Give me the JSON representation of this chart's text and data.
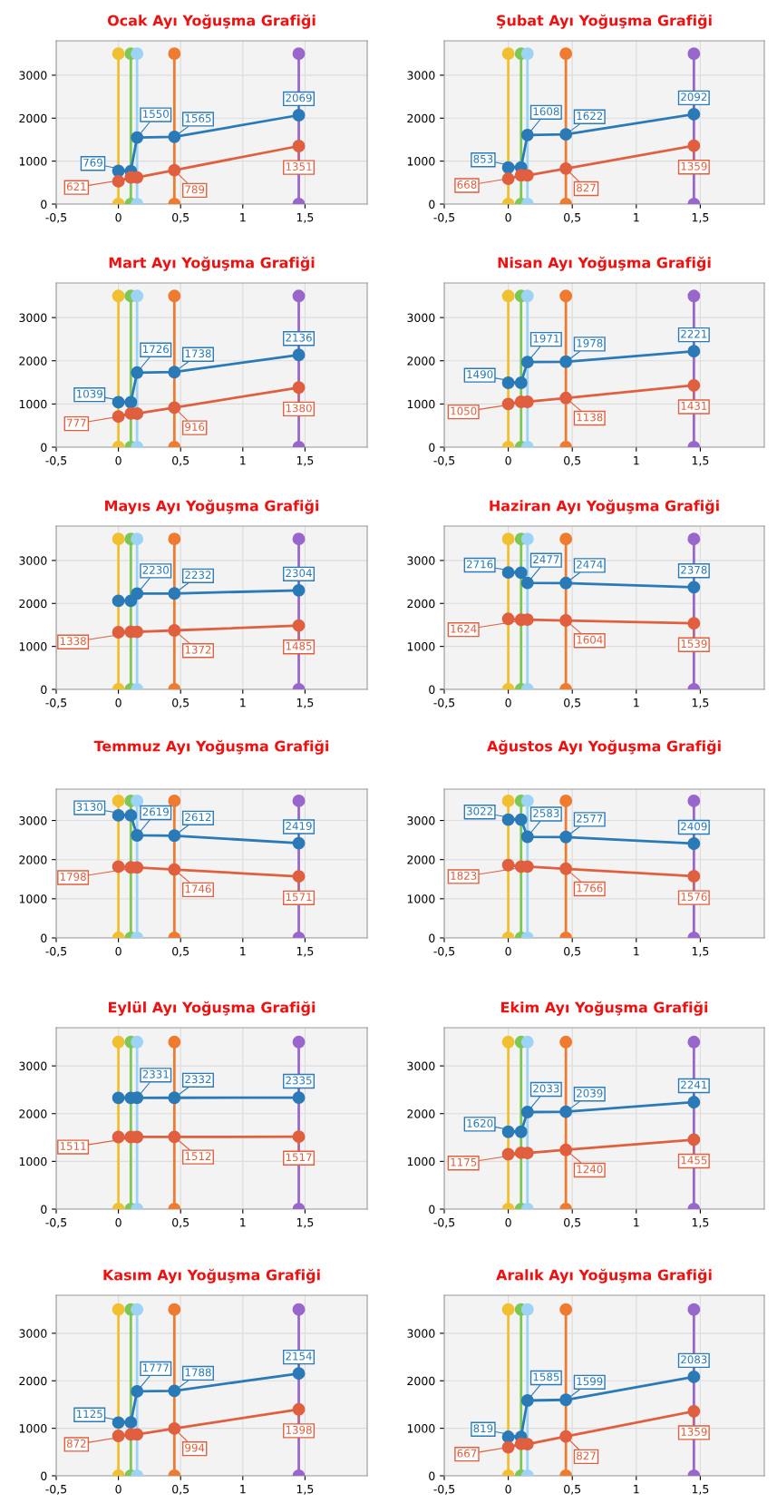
{
  "chart_data": [
    {
      "type": "line",
      "title": "Ocak Ayı Yoğuşma Grafiği",
      "xlim": [
        -0.5,
        2
      ],
      "xticks": [
        {
          "value": -0.5,
          "label": "-0,5"
        },
        0,
        {
          "value": 0.5,
          "label": "0,5"
        },
        1,
        {
          "value": 1.5,
          "label": "1,5"
        }
      ],
      "ylim": [
        0,
        3800
      ],
      "yticks": [
        0,
        1000,
        2000,
        3000
      ],
      "grid": true,
      "marker": "circle",
      "series": [
        {
          "x": [
            0,
            0
          ],
          "values": [
            0,
            3500
          ],
          "color": "#f0c030"
        },
        {
          "x": [
            0.1,
            0.1
          ],
          "values": [
            0,
            3500
          ],
          "color": "#7dc756"
        },
        {
          "x": [
            0.15,
            0.15
          ],
          "values": [
            0,
            3500
          ],
          "color": "#9dd4f5"
        },
        {
          "x": [
            0.45,
            0.45
          ],
          "values": [
            0,
            3500
          ],
          "color": "#ee7b30"
        },
        {
          "x": [
            1.45,
            1.45
          ],
          "values": [
            0,
            3500
          ],
          "color": "#9966cc"
        },
        {
          "x": [
            0,
            0.1,
            0.15,
            0.45,
            1.45
          ],
          "values": [
            770,
            769,
            1550,
            1565,
            2069
          ],
          "color": "#2a7ab7",
          "value_labels": [
            null,
            "769",
            "1550",
            "1565",
            "2069"
          ]
        },
        {
          "x": [
            0,
            0.1,
            0.15,
            0.45,
            1.45
          ],
          "values": [
            530,
            620,
            621,
            789,
            1351
          ],
          "color": "#e05f3f",
          "value_labels": [
            null,
            null,
            "621",
            "789",
            "1351"
          ]
        }
      ]
    },
    {
      "type": "line",
      "title": "Şubat Ayı Yoğuşma Grafiği",
      "xlim": [
        -0.5,
        2
      ],
      "xticks": [
        {
          "value": -0.5,
          "label": "-0,5"
        },
        0,
        {
          "value": 0.5,
          "label": "0,5"
        },
        1,
        {
          "value": 1.5,
          "label": "1,5"
        }
      ],
      "ylim": [
        0,
        3800
      ],
      "yticks": [
        0,
        1000,
        2000,
        3000
      ],
      "grid": true,
      "marker": "circle",
      "series": [
        {
          "x": [
            0,
            0
          ],
          "values": [
            0,
            3500
          ],
          "color": "#f0c030"
        },
        {
          "x": [
            0.1,
            0.1
          ],
          "values": [
            0,
            3500
          ],
          "color": "#7dc756"
        },
        {
          "x": [
            0.15,
            0.15
          ],
          "values": [
            0,
            3500
          ],
          "color": "#9dd4f5"
        },
        {
          "x": [
            0.45,
            0.45
          ],
          "values": [
            0,
            3500
          ],
          "color": "#ee7b30"
        },
        {
          "x": [
            1.45,
            1.45
          ],
          "values": [
            0,
            3500
          ],
          "color": "#9966cc"
        },
        {
          "x": [
            0,
            0.1,
            0.15,
            0.45,
            1.45
          ],
          "values": [
            850,
            853,
            1608,
            1622,
            2092
          ],
          "color": "#2a7ab7",
          "value_labels": [
            null,
            "853",
            "1608",
            "1622",
            "2092"
          ]
        },
        {
          "x": [
            0,
            0.1,
            0.15,
            0.45,
            1.45
          ],
          "values": [
            590,
            670,
            668,
            827,
            1359
          ],
          "color": "#e05f3f",
          "value_labels": [
            null,
            null,
            "668",
            "827",
            "1359"
          ]
        }
      ]
    },
    {
      "type": "line",
      "title": "Mart Ayı Yoğuşma Grafiği",
      "xlim": [
        -0.5,
        2
      ],
      "xticks": [
        {
          "value": -0.5,
          "label": "-0,5"
        },
        0,
        {
          "value": 0.5,
          "label": "0,5"
        },
        1,
        {
          "value": 1.5,
          "label": "1,5"
        }
      ],
      "ylim": [
        0,
        3800
      ],
      "yticks": [
        0,
        1000,
        2000,
        3000
      ],
      "grid": true,
      "marker": "circle",
      "series": [
        {
          "x": [
            0,
            0
          ],
          "values": [
            0,
            3500
          ],
          "color": "#f0c030"
        },
        {
          "x": [
            0.1,
            0.1
          ],
          "values": [
            0,
            3500
          ],
          "color": "#7dc756"
        },
        {
          "x": [
            0.15,
            0.15
          ],
          "values": [
            0,
            3500
          ],
          "color": "#9dd4f5"
        },
        {
          "x": [
            0.45,
            0.45
          ],
          "values": [
            0,
            3500
          ],
          "color": "#ee7b30"
        },
        {
          "x": [
            1.45,
            1.45
          ],
          "values": [
            0,
            3500
          ],
          "color": "#9966cc"
        },
        {
          "x": [
            0,
            0.1,
            0.15,
            0.45,
            1.45
          ],
          "values": [
            1040,
            1039,
            1726,
            1738,
            2136
          ],
          "color": "#2a7ab7",
          "value_labels": [
            null,
            "1039",
            "1726",
            "1738",
            "2136"
          ]
        },
        {
          "x": [
            0,
            0.1,
            0.15,
            0.45,
            1.45
          ],
          "values": [
            710,
            780,
            777,
            916,
            1380
          ],
          "color": "#e05f3f",
          "value_labels": [
            null,
            null,
            "777",
            "916",
            "1380"
          ]
        }
      ]
    },
    {
      "type": "line",
      "title": "Nisan Ayı Yoğuşma Grafiği",
      "xlim": [
        -0.5,
        2
      ],
      "xticks": [
        {
          "value": -0.5,
          "label": "-0,5"
        },
        0,
        {
          "value": 0.5,
          "label": "0,5"
        },
        1,
        {
          "value": 1.5,
          "label": "1,5"
        }
      ],
      "ylim": [
        0,
        3800
      ],
      "yticks": [
        0,
        1000,
        2000,
        3000
      ],
      "grid": true,
      "marker": "circle",
      "series": [
        {
          "x": [
            0,
            0
          ],
          "values": [
            0,
            3500
          ],
          "color": "#f0c030"
        },
        {
          "x": [
            0.1,
            0.1
          ],
          "values": [
            0,
            3500
          ],
          "color": "#7dc756"
        },
        {
          "x": [
            0.15,
            0.15
          ],
          "values": [
            0,
            3500
          ],
          "color": "#9dd4f5"
        },
        {
          "x": [
            0.45,
            0.45
          ],
          "values": [
            0,
            3500
          ],
          "color": "#ee7b30"
        },
        {
          "x": [
            1.45,
            1.45
          ],
          "values": [
            0,
            3500
          ],
          "color": "#9966cc"
        },
        {
          "x": [
            0,
            0.1,
            0.15,
            0.45,
            1.45
          ],
          "values": [
            1490,
            1490,
            1971,
            1978,
            2221
          ],
          "color": "#2a7ab7",
          "value_labels": [
            null,
            "1490",
            "1971",
            "1978",
            "2221"
          ]
        },
        {
          "x": [
            0,
            0.1,
            0.15,
            0.45,
            1.45
          ],
          "values": [
            1000,
            1050,
            1050,
            1138,
            1431
          ],
          "color": "#e05f3f",
          "value_labels": [
            null,
            null,
            "1050",
            "1138",
            "1431"
          ]
        }
      ]
    },
    {
      "type": "line",
      "title": "Mayıs Ayı Yoğuşma Grafiği",
      "xlim": [
        -0.5,
        2
      ],
      "xticks": [
        {
          "value": -0.5,
          "label": "-0,5"
        },
        0,
        {
          "value": 0.5,
          "label": "0,5"
        },
        1,
        {
          "value": 1.5,
          "label": "1,5"
        }
      ],
      "ylim": [
        0,
        3800
      ],
      "yticks": [
        0,
        1000,
        2000,
        3000
      ],
      "grid": true,
      "marker": "circle",
      "series": [
        {
          "x": [
            0,
            0
          ],
          "values": [
            0,
            3500
          ],
          "color": "#f0c030"
        },
        {
          "x": [
            0.1,
            0.1
          ],
          "values": [
            0,
            3500
          ],
          "color": "#7dc756"
        },
        {
          "x": [
            0.15,
            0.15
          ],
          "values": [
            0,
            3500
          ],
          "color": "#9dd4f5"
        },
        {
          "x": [
            0.45,
            0.45
          ],
          "values": [
            0,
            3500
          ],
          "color": "#ee7b30"
        },
        {
          "x": [
            1.45,
            1.45
          ],
          "values": [
            0,
            3500
          ],
          "color": "#9966cc"
        },
        {
          "x": [
            0,
            0.1,
            0.15,
            0.45,
            1.45
          ],
          "values": [
            2060,
            2060,
            2230,
            2232,
            2304
          ],
          "color": "#2a7ab7",
          "value_labels": [
            null,
            null,
            "2230",
            "2232",
            "2304"
          ]
        },
        {
          "x": [
            0,
            0.1,
            0.15,
            0.45,
            1.45
          ],
          "values": [
            1330,
            1340,
            1338,
            1372,
            1485
          ],
          "color": "#e05f3f",
          "value_labels": [
            null,
            null,
            "1338",
            "1372",
            "1485"
          ]
        }
      ]
    },
    {
      "type": "line",
      "title": "Haziran Ayı Yoğuşma Grafiği",
      "xlim": [
        -0.5,
        2
      ],
      "xticks": [
        {
          "value": -0.5,
          "label": "-0,5"
        },
        0,
        {
          "value": 0.5,
          "label": "0,5"
        },
        1,
        {
          "value": 1.5,
          "label": "1,5"
        }
      ],
      "ylim": [
        0,
        3800
      ],
      "yticks": [
        0,
        1000,
        2000,
        3000
      ],
      "grid": true,
      "marker": "circle",
      "series": [
        {
          "x": [
            0,
            0
          ],
          "values": [
            0,
            3500
          ],
          "color": "#f0c030"
        },
        {
          "x": [
            0.1,
            0.1
          ],
          "values": [
            0,
            3500
          ],
          "color": "#7dc756"
        },
        {
          "x": [
            0.15,
            0.15
          ],
          "values": [
            0,
            3500
          ],
          "color": "#9dd4f5"
        },
        {
          "x": [
            0.45,
            0.45
          ],
          "values": [
            0,
            3500
          ],
          "color": "#ee7b30"
        },
        {
          "x": [
            1.45,
            1.45
          ],
          "values": [
            0,
            3500
          ],
          "color": "#9966cc"
        },
        {
          "x": [
            0,
            0.1,
            0.15,
            0.45,
            1.45
          ],
          "values": [
            2720,
            2716,
            2477,
            2474,
            2378
          ],
          "color": "#2a7ab7",
          "value_labels": [
            null,
            "2716",
            "2477",
            "2474",
            "2378"
          ]
        },
        {
          "x": [
            0,
            0.1,
            0.15,
            0.45,
            1.45
          ],
          "values": [
            1640,
            1620,
            1624,
            1604,
            1539
          ],
          "color": "#e05f3f",
          "value_labels": [
            null,
            null,
            "1624",
            "1604",
            "1539"
          ]
        }
      ]
    },
    {
      "type": "line",
      "title": "Temmuz Ayı Yoğuşma Grafiği",
      "xlim": [
        -0.5,
        2
      ],
      "xticks": [
        {
          "value": -0.5,
          "label": "-0,5"
        },
        0,
        {
          "value": 0.5,
          "label": "0,5"
        },
        1,
        {
          "value": 1.5,
          "label": "1,5"
        }
      ],
      "ylim": [
        0,
        3800
      ],
      "yticks": [
        0,
        1000,
        2000,
        3000
      ],
      "grid": true,
      "marker": "circle",
      "series": [
        {
          "x": [
            0,
            0
          ],
          "values": [
            0,
            3500
          ],
          "color": "#f0c030"
        },
        {
          "x": [
            0.1,
            0.1
          ],
          "values": [
            0,
            3500
          ],
          "color": "#7dc756"
        },
        {
          "x": [
            0.15,
            0.15
          ],
          "values": [
            0,
            3500
          ],
          "color": "#9dd4f5"
        },
        {
          "x": [
            0.45,
            0.45
          ],
          "values": [
            0,
            3500
          ],
          "color": "#ee7b30"
        },
        {
          "x": [
            1.45,
            1.45
          ],
          "values": [
            0,
            3500
          ],
          "color": "#9966cc"
        },
        {
          "x": [
            0,
            0.1,
            0.15,
            0.45,
            1.45
          ],
          "values": [
            3130,
            3130,
            2619,
            2612,
            2419
          ],
          "color": "#2a7ab7",
          "value_labels": [
            null,
            "3130",
            "2619",
            "2612",
            "2419"
          ]
        },
        {
          "x": [
            0,
            0.1,
            0.15,
            0.45,
            1.45
          ],
          "values": [
            1820,
            1800,
            1798,
            1746,
            1571
          ],
          "color": "#e05f3f",
          "value_labels": [
            null,
            null,
            "1798",
            "1746",
            "1571"
          ]
        }
      ]
    },
    {
      "type": "line",
      "title": "Ağustos Ayı Yoğuşma Grafiği",
      "xlim": [
        -0.5,
        2
      ],
      "xticks": [
        {
          "value": -0.5,
          "label": "-0,5"
        },
        0,
        {
          "value": 0.5,
          "label": "0,5"
        },
        1,
        {
          "value": 1.5,
          "label": "1,5"
        }
      ],
      "ylim": [
        0,
        3800
      ],
      "yticks": [
        0,
        1000,
        2000,
        3000
      ],
      "grid": true,
      "marker": "circle",
      "series": [
        {
          "x": [
            0,
            0
          ],
          "values": [
            0,
            3500
          ],
          "color": "#f0c030"
        },
        {
          "x": [
            0.1,
            0.1
          ],
          "values": [
            0,
            3500
          ],
          "color": "#7dc756"
        },
        {
          "x": [
            0.15,
            0.15
          ],
          "values": [
            0,
            3500
          ],
          "color": "#9dd4f5"
        },
        {
          "x": [
            0.45,
            0.45
          ],
          "values": [
            0,
            3500
          ],
          "color": "#ee7b30"
        },
        {
          "x": [
            1.45,
            1.45
          ],
          "values": [
            0,
            3500
          ],
          "color": "#9966cc"
        },
        {
          "x": [
            0,
            0.1,
            0.15,
            0.45,
            1.45
          ],
          "values": [
            3020,
            3022,
            2583,
            2577,
            2409
          ],
          "color": "#2a7ab7",
          "value_labels": [
            null,
            "3022",
            "2583",
            "2577",
            "2409"
          ]
        },
        {
          "x": [
            0,
            0.1,
            0.15,
            0.45,
            1.45
          ],
          "values": [
            1860,
            1820,
            1823,
            1766,
            1576
          ],
          "color": "#e05f3f",
          "value_labels": [
            null,
            null,
            "1823",
            "1766",
            "1576"
          ]
        }
      ]
    },
    {
      "type": "line",
      "title": "Eylül Ayı Yoğuşma Grafiği",
      "xlim": [
        -0.5,
        2
      ],
      "xticks": [
        {
          "value": -0.5,
          "label": "-0,5"
        },
        0,
        {
          "value": 0.5,
          "label": "0,5"
        },
        1,
        {
          "value": 1.5,
          "label": "1,5"
        }
      ],
      "ylim": [
        0,
        3800
      ],
      "yticks": [
        0,
        1000,
        2000,
        3000
      ],
      "grid": true,
      "marker": "circle",
      "series": [
        {
          "x": [
            0,
            0
          ],
          "values": [
            0,
            3500
          ],
          "color": "#f0c030"
        },
        {
          "x": [
            0.1,
            0.1
          ],
          "values": [
            0,
            3500
          ],
          "color": "#7dc756"
        },
        {
          "x": [
            0.15,
            0.15
          ],
          "values": [
            0,
            3500
          ],
          "color": "#9dd4f5"
        },
        {
          "x": [
            0.45,
            0.45
          ],
          "values": [
            0,
            3500
          ],
          "color": "#ee7b30"
        },
        {
          "x": [
            1.45,
            1.45
          ],
          "values": [
            0,
            3500
          ],
          "color": "#9966cc"
        },
        {
          "x": [
            0,
            0.1,
            0.15,
            0.45,
            1.45
          ],
          "values": [
            2330,
            2330,
            2331,
            2332,
            2335
          ],
          "color": "#2a7ab7",
          "value_labels": [
            null,
            null,
            "2331",
            "2332",
            "2335"
          ]
        },
        {
          "x": [
            0,
            0.1,
            0.15,
            0.45,
            1.45
          ],
          "values": [
            1510,
            1510,
            1511,
            1512,
            1517
          ],
          "color": "#e05f3f",
          "value_labels": [
            null,
            null,
            "1511",
            "1512",
            "1517"
          ]
        }
      ]
    },
    {
      "type": "line",
      "title": "Ekim Ayı Yoğuşma Grafiği",
      "xlim": [
        -0.5,
        2
      ],
      "xticks": [
        {
          "value": -0.5,
          "label": "-0,5"
        },
        0,
        {
          "value": 0.5,
          "label": "0,5"
        },
        1,
        {
          "value": 1.5,
          "label": "1,5"
        }
      ],
      "ylim": [
        0,
        3800
      ],
      "yticks": [
        0,
        1000,
        2000,
        3000
      ],
      "grid": true,
      "marker": "circle",
      "series": [
        {
          "x": [
            0,
            0
          ],
          "values": [
            0,
            3500
          ],
          "color": "#f0c030"
        },
        {
          "x": [
            0.1,
            0.1
          ],
          "values": [
            0,
            3500
          ],
          "color": "#7dc756"
        },
        {
          "x": [
            0.15,
            0.15
          ],
          "values": [
            0,
            3500
          ],
          "color": "#9dd4f5"
        },
        {
          "x": [
            0.45,
            0.45
          ],
          "values": [
            0,
            3500
          ],
          "color": "#ee7b30"
        },
        {
          "x": [
            1.45,
            1.45
          ],
          "values": [
            0,
            3500
          ],
          "color": "#9966cc"
        },
        {
          "x": [
            0,
            0.1,
            0.15,
            0.45,
            1.45
          ],
          "values": [
            1620,
            1620,
            2033,
            2039,
            2241
          ],
          "color": "#2a7ab7",
          "value_labels": [
            null,
            "1620",
            "2033",
            "2039",
            "2241"
          ]
        },
        {
          "x": [
            0,
            0.1,
            0.15,
            0.45,
            1.45
          ],
          "values": [
            1150,
            1180,
            1175,
            1240,
            1455
          ],
          "color": "#e05f3f",
          "value_labels": [
            null,
            null,
            "1175",
            "1240",
            "1455"
          ]
        }
      ]
    },
    {
      "type": "line",
      "title": "Kasım Ayı Yoğuşma Grafiği",
      "xlim": [
        -0.5,
        2
      ],
      "xticks": [
        {
          "value": -0.5,
          "label": "-0,5"
        },
        0,
        {
          "value": 0.5,
          "label": "0,5"
        },
        1,
        {
          "value": 1.5,
          "label": "1,5"
        }
      ],
      "ylim": [
        0,
        3800
      ],
      "yticks": [
        0,
        1000,
        2000,
        3000
      ],
      "grid": true,
      "marker": "circle",
      "series": [
        {
          "x": [
            0,
            0
          ],
          "values": [
            0,
            3500
          ],
          "color": "#f0c030"
        },
        {
          "x": [
            0.1,
            0.1
          ],
          "values": [
            0,
            3500
          ],
          "color": "#7dc756"
        },
        {
          "x": [
            0.15,
            0.15
          ],
          "values": [
            0,
            3500
          ],
          "color": "#9dd4f5"
        },
        {
          "x": [
            0.45,
            0.45
          ],
          "values": [
            0,
            3500
          ],
          "color": "#ee7b30"
        },
        {
          "x": [
            1.45,
            1.45
          ],
          "values": [
            0,
            3500
          ],
          "color": "#9966cc"
        },
        {
          "x": [
            0,
            0.1,
            0.15,
            0.45,
            1.45
          ],
          "values": [
            1120,
            1125,
            1777,
            1788,
            2154
          ],
          "color": "#2a7ab7",
          "value_labels": [
            null,
            "1125",
            "1777",
            "1788",
            "2154"
          ]
        },
        {
          "x": [
            0,
            0.1,
            0.15,
            0.45,
            1.45
          ],
          "values": [
            840,
            870,
            872,
            994,
            1398
          ],
          "color": "#e05f3f",
          "value_labels": [
            null,
            null,
            "872",
            "994",
            "1398"
          ]
        }
      ]
    },
    {
      "type": "line",
      "title": "Aralık Ayı Yoğuşma Grafiği",
      "xlim": [
        -0.5,
        2
      ],
      "xticks": [
        {
          "value": -0.5,
          "label": "-0,5"
        },
        0,
        {
          "value": 0.5,
          "label": "0,5"
        },
        1,
        {
          "value": 1.5,
          "label": "1,5"
        }
      ],
      "ylim": [
        0,
        3800
      ],
      "yticks": [
        0,
        1000,
        2000,
        3000
      ],
      "grid": true,
      "marker": "circle",
      "series": [
        {
          "x": [
            0,
            0
          ],
          "values": [
            0,
            3500
          ],
          "color": "#f0c030"
        },
        {
          "x": [
            0.1,
            0.1
          ],
          "values": [
            0,
            3500
          ],
          "color": "#7dc756"
        },
        {
          "x": [
            0.15,
            0.15
          ],
          "values": [
            0,
            3500
          ],
          "color": "#9dd4f5"
        },
        {
          "x": [
            0.45,
            0.45
          ],
          "values": [
            0,
            3500
          ],
          "color": "#ee7b30"
        },
        {
          "x": [
            1.45,
            1.45
          ],
          "values": [
            0,
            3500
          ],
          "color": "#9966cc"
        },
        {
          "x": [
            0,
            0.1,
            0.15,
            0.45,
            1.45
          ],
          "values": [
            820,
            819,
            1585,
            1599,
            2083
          ],
          "color": "#2a7ab7",
          "value_labels": [
            null,
            "819",
            "1585",
            "1599",
            "2083"
          ]
        },
        {
          "x": [
            0,
            0.1,
            0.15,
            0.45,
            1.45
          ],
          "values": [
            600,
            670,
            667,
            827,
            1359
          ],
          "color": "#e05f3f",
          "value_labels": [
            null,
            null,
            "667",
            "827",
            "1359"
          ]
        }
      ]
    }
  ]
}
